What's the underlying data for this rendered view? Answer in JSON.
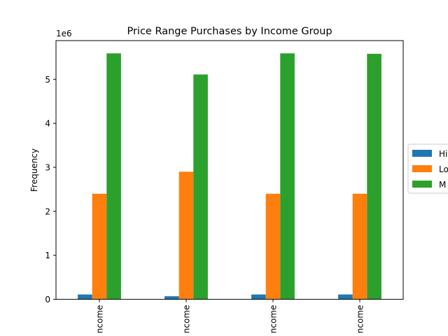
{
  "chart_data": {
    "type": "bar",
    "title": "Price Range Purchases by Income Group",
    "xlabel": "",
    "ylabel": "Frequency",
    "y_offset_label": "1e6",
    "y_scale_factor": 1000000,
    "ylim": [
      0,
      5880000
    ],
    "yticks": [
      0,
      1,
      2,
      3,
      4,
      5
    ],
    "grid": false,
    "legend_position": "center-right (outside, clipped)",
    "categories": [
      "ncome",
      "ncome",
      "ncome",
      "ncome"
    ],
    "series": [
      {
        "name": "Hi",
        "color": "#1f77b4",
        "values": [
          110000,
          70000,
          110000,
          110000
        ]
      },
      {
        "name": "Lo",
        "color": "#ff7f0e",
        "values": [
          2400000,
          2900000,
          2400000,
          2400000
        ]
      },
      {
        "name": "M",
        "color": "#2ca02c",
        "values": [
          5590000,
          5110000,
          5590000,
          5580000
        ]
      }
    ]
  }
}
